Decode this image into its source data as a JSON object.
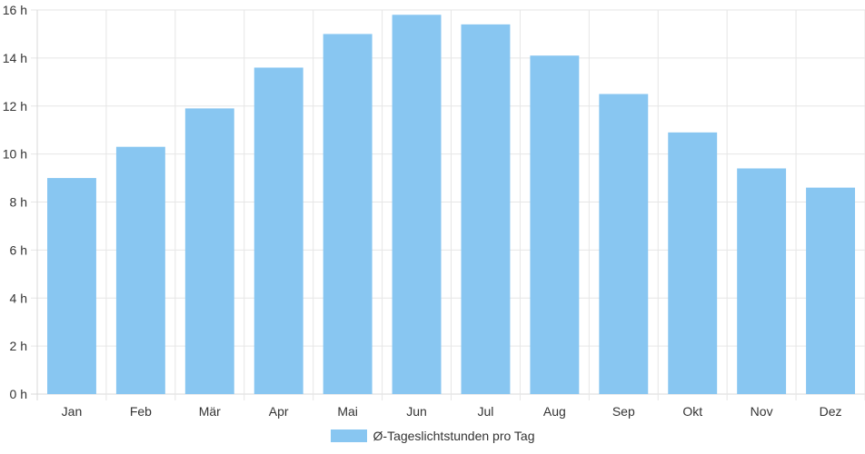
{
  "chart_data": {
    "type": "bar",
    "categories": [
      "Jan",
      "Feb",
      "Mär",
      "Apr",
      "Mai",
      "Jun",
      "Jul",
      "Aug",
      "Sep",
      "Okt",
      "Nov",
      "Dez"
    ],
    "series": [
      {
        "name": "Ø-Tageslichtstunden pro Tag",
        "values": [
          9.0,
          10.3,
          11.9,
          13.6,
          15.0,
          15.8,
          15.4,
          14.1,
          12.5,
          10.9,
          9.4,
          8.6
        ],
        "color": "#88c6f1"
      }
    ],
    "y_ticks": [
      "0 h",
      "2 h",
      "4 h",
      "6 h",
      "8 h",
      "10 h",
      "12 h",
      "14 h",
      "16 h"
    ],
    "ylim": [
      0,
      16
    ],
    "grid": true,
    "legend_position": "bottom"
  },
  "legend": {
    "label": "Ø-Tageslichtstunden pro Tag",
    "color": "#88c6f1"
  }
}
